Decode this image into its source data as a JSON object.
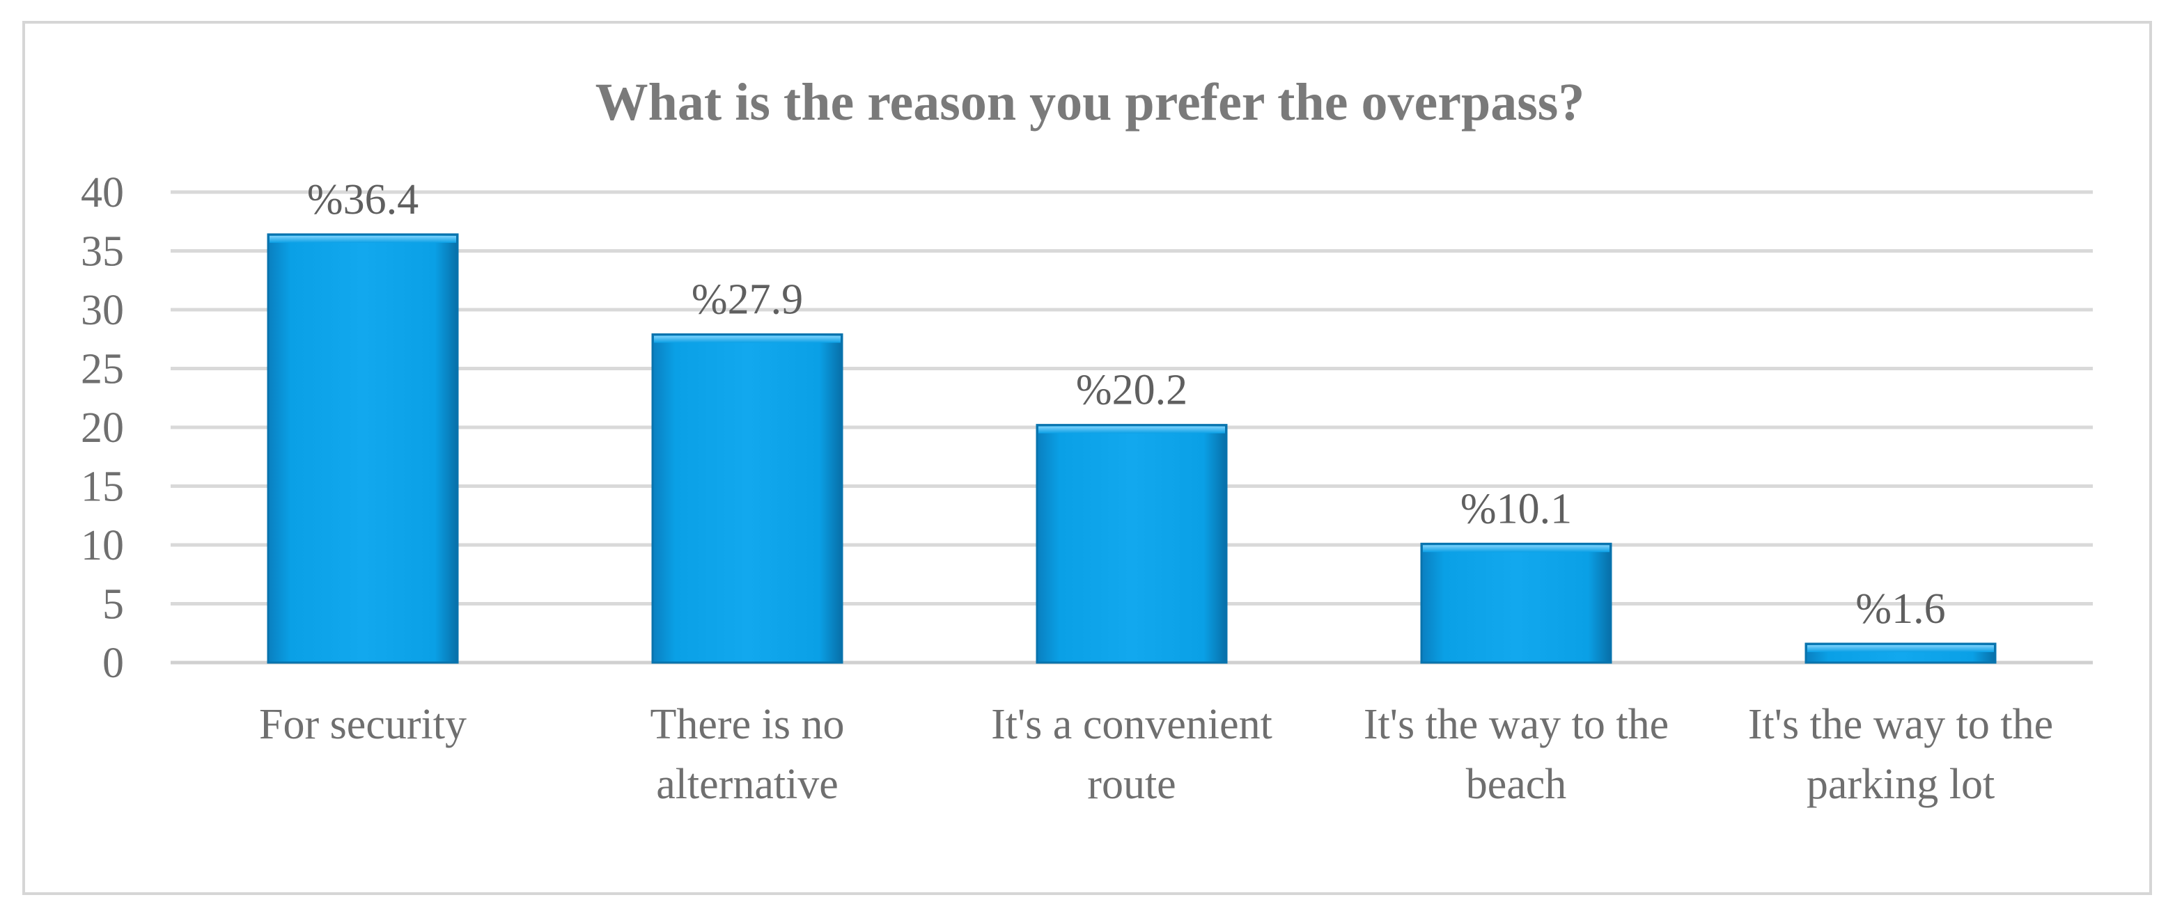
{
  "chart_data": {
    "type": "bar",
    "title": "What is the reason you prefer the overpass?",
    "xlabel": "",
    "ylabel": "",
    "categories": [
      [
        "For security"
      ],
      [
        "There is no",
        "alternative"
      ],
      [
        "It's a convenient",
        "route"
      ],
      [
        "It's the way to the",
        "beach"
      ],
      [
        "It's the way to the",
        "parking lot"
      ]
    ],
    "values": [
      36.4,
      27.9,
      20.2,
      10.1,
      1.6
    ],
    "data_labels": [
      "%36.4",
      "%27.9",
      "%20.2",
      "%10.1",
      "%1.6"
    ],
    "ylim": [
      0,
      40
    ],
    "yticks": [
      0,
      5,
      10,
      15,
      20,
      25,
      30,
      35,
      40
    ],
    "grid": true,
    "legend": "none",
    "bar_color": "#0aa0e6"
  }
}
